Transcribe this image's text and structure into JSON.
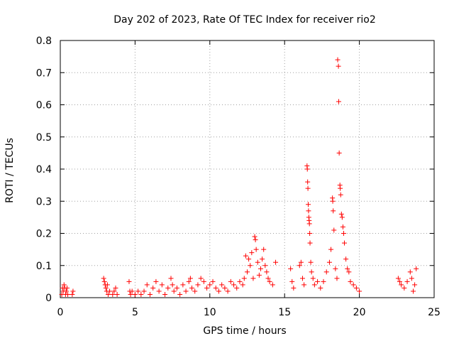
{
  "chart_data": {
    "type": "scatter",
    "title": "Day 202 of 2023, Rate Of TEC Index for receiver rio2",
    "xlabel": "GPS time / hours",
    "ylabel": "ROTI / TECUs",
    "xlim": [
      0,
      25
    ],
    "ylim": [
      0,
      0.8
    ],
    "xticks": [
      0,
      5,
      10,
      15,
      20,
      25
    ],
    "yticks": [
      0,
      0.1,
      0.2,
      0.3,
      0.4,
      0.5,
      0.6,
      0.7,
      0.8
    ],
    "xtick_labels": [
      "0",
      "5",
      "10",
      "15",
      "20",
      "25"
    ],
    "ytick_labels": [
      "0",
      "0.1",
      "0.2",
      "0.3",
      "0.4",
      "0.5",
      "0.6",
      "0.7",
      "0.8"
    ],
    "grid": true,
    "marker": "+",
    "color": "#ff0000",
    "points": [
      [
        0.1,
        0.01
      ],
      [
        0.15,
        0.03
      ],
      [
        0.2,
        0.02
      ],
      [
        0.25,
        0.04
      ],
      [
        0.3,
        0.03
      ],
      [
        0.35,
        0.01
      ],
      [
        0.4,
        0.02
      ],
      [
        0.45,
        0.03
      ],
      [
        0.5,
        0.01
      ],
      [
        0.8,
        0.01
      ],
      [
        0.85,
        0.02
      ],
      [
        2.9,
        0.06
      ],
      [
        2.95,
        0.05
      ],
      [
        3.0,
        0.04
      ],
      [
        3.05,
        0.03
      ],
      [
        3.1,
        0.02
      ],
      [
        3.15,
        0.04
      ],
      [
        3.2,
        0.01
      ],
      [
        3.3,
        0.02
      ],
      [
        3.5,
        0.01
      ],
      [
        3.6,
        0.02
      ],
      [
        3.7,
        0.03
      ],
      [
        3.8,
        0.01
      ],
      [
        4.6,
        0.05
      ],
      [
        4.65,
        0.02
      ],
      [
        4.7,
        0.01
      ],
      [
        4.8,
        0.02
      ],
      [
        5.0,
        0.01
      ],
      [
        5.2,
        0.02
      ],
      [
        5.4,
        0.01
      ],
      [
        5.6,
        0.02
      ],
      [
        5.8,
        0.04
      ],
      [
        6.0,
        0.01
      ],
      [
        6.2,
        0.03
      ],
      [
        6.4,
        0.05
      ],
      [
        6.6,
        0.02
      ],
      [
        6.8,
        0.04
      ],
      [
        7.0,
        0.01
      ],
      [
        7.2,
        0.03
      ],
      [
        7.4,
        0.06
      ],
      [
        7.5,
        0.04
      ],
      [
        7.6,
        0.02
      ],
      [
        7.8,
        0.03
      ],
      [
        8.0,
        0.01
      ],
      [
        8.2,
        0.04
      ],
      [
        8.4,
        0.02
      ],
      [
        8.6,
        0.05
      ],
      [
        8.7,
        0.06
      ],
      [
        8.8,
        0.03
      ],
      [
        9.0,
        0.02
      ],
      [
        9.2,
        0.04
      ],
      [
        9.4,
        0.06
      ],
      [
        9.6,
        0.05
      ],
      [
        9.8,
        0.03
      ],
      [
        10.0,
        0.04
      ],
      [
        10.2,
        0.05
      ],
      [
        10.4,
        0.03
      ],
      [
        10.6,
        0.02
      ],
      [
        10.8,
        0.04
      ],
      [
        11.0,
        0.03
      ],
      [
        11.2,
        0.02
      ],
      [
        11.4,
        0.05
      ],
      [
        11.6,
        0.04
      ],
      [
        11.8,
        0.03
      ],
      [
        12.0,
        0.05
      ],
      [
        12.2,
        0.04
      ],
      [
        12.3,
        0.06
      ],
      [
        12.4,
        0.13
      ],
      [
        12.5,
        0.08
      ],
      [
        12.6,
        0.12
      ],
      [
        12.7,
        0.1
      ],
      [
        12.8,
        0.14
      ],
      [
        12.9,
        0.06
      ],
      [
        13.0,
        0.19
      ],
      [
        13.05,
        0.18
      ],
      [
        13.1,
        0.15
      ],
      [
        13.2,
        0.11
      ],
      [
        13.3,
        0.07
      ],
      [
        13.4,
        0.09
      ],
      [
        13.5,
        0.12
      ],
      [
        13.6,
        0.15
      ],
      [
        13.7,
        0.1
      ],
      [
        13.8,
        0.08
      ],
      [
        13.9,
        0.06
      ],
      [
        14.0,
        0.05
      ],
      [
        14.2,
        0.04
      ],
      [
        14.4,
        0.11
      ],
      [
        15.4,
        0.09
      ],
      [
        15.5,
        0.05
      ],
      [
        15.6,
        0.03
      ],
      [
        16.0,
        0.1
      ],
      [
        16.1,
        0.11
      ],
      [
        16.2,
        0.06
      ],
      [
        16.3,
        0.04
      ],
      [
        16.5,
        0.41
      ],
      [
        16.52,
        0.4
      ],
      [
        16.54,
        0.36
      ],
      [
        16.56,
        0.34
      ],
      [
        16.58,
        0.29
      ],
      [
        16.6,
        0.27
      ],
      [
        16.62,
        0.25
      ],
      [
        16.64,
        0.24
      ],
      [
        16.66,
        0.23
      ],
      [
        16.68,
        0.2
      ],
      [
        16.7,
        0.17
      ],
      [
        16.75,
        0.11
      ],
      [
        16.8,
        0.08
      ],
      [
        16.9,
        0.06
      ],
      [
        17.0,
        0.04
      ],
      [
        17.2,
        0.05
      ],
      [
        17.4,
        0.03
      ],
      [
        17.6,
        0.05
      ],
      [
        17.8,
        0.08
      ],
      [
        18.0,
        0.11
      ],
      [
        18.1,
        0.15
      ],
      [
        18.2,
        0.31
      ],
      [
        18.22,
        0.3
      ],
      [
        18.25,
        0.27
      ],
      [
        18.3,
        0.21
      ],
      [
        18.4,
        0.09
      ],
      [
        18.5,
        0.06
      ],
      [
        18.55,
        0.74
      ],
      [
        18.6,
        0.72
      ],
      [
        18.62,
        0.61
      ],
      [
        18.65,
        0.45
      ],
      [
        18.7,
        0.35
      ],
      [
        18.72,
        0.34
      ],
      [
        18.75,
        0.32
      ],
      [
        18.8,
        0.26
      ],
      [
        18.85,
        0.25
      ],
      [
        18.9,
        0.22
      ],
      [
        18.95,
        0.2
      ],
      [
        19.0,
        0.17
      ],
      [
        19.1,
        0.12
      ],
      [
        19.2,
        0.09
      ],
      [
        19.3,
        0.08
      ],
      [
        19.4,
        0.05
      ],
      [
        19.6,
        0.04
      ],
      [
        19.8,
        0.03
      ],
      [
        20.0,
        0.02
      ],
      [
        22.6,
        0.06
      ],
      [
        22.7,
        0.05
      ],
      [
        22.8,
        0.04
      ],
      [
        23.0,
        0.03
      ],
      [
        23.2,
        0.05
      ],
      [
        23.4,
        0.08
      ],
      [
        23.5,
        0.06
      ],
      [
        23.6,
        0.02
      ],
      [
        23.7,
        0.04
      ],
      [
        23.8,
        0.09
      ]
    ]
  }
}
